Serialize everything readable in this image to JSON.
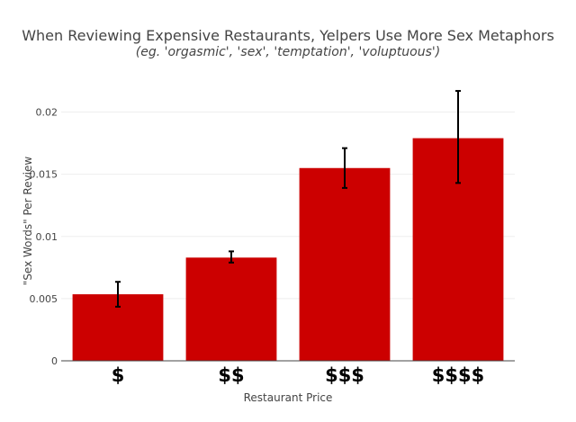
{
  "chart_data": {
    "type": "bar",
    "title": "When Reviewing Expensive Restaurants, Yelpers Use More Sex Metaphors",
    "subtitle": "(eg. 'orgasmic', 'sex', 'temptation', 'voluptuous')",
    "xlabel": "Restaurant Price",
    "ylabel": "\"Sex Words\" Per Review",
    "categories": [
      "$",
      "$$",
      "$$$",
      "$$$$"
    ],
    "values": [
      0.00535,
      0.0083,
      0.0155,
      0.0179
    ],
    "error_low": [
      0.00435,
      0.0079,
      0.0139,
      0.0143
    ],
    "error_high": [
      0.00635,
      0.0088,
      0.0171,
      0.0217
    ],
    "ylim": [
      0,
      0.0225
    ],
    "yticks": [
      0,
      0.005,
      0.01,
      0.015,
      0.02
    ],
    "ytick_labels": [
      "0",
      "0.005",
      "0.01",
      "0.015",
      "0.02"
    ],
    "grid": true,
    "bar_color": "#cc0000",
    "error_color": "#000000"
  }
}
